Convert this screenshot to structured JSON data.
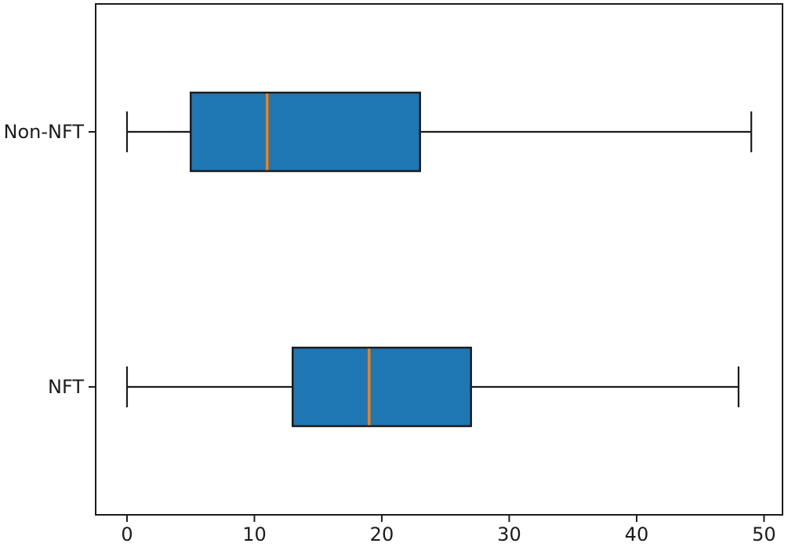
{
  "chart_data": {
    "type": "boxplot",
    "orientation": "horizontal",
    "title": "",
    "xlabel": "",
    "ylabel": "",
    "categories": [
      "Non-NFT",
      "NFT"
    ],
    "series": [
      {
        "name": "Non-NFT",
        "whisker_low": 0,
        "q1": 5,
        "median": 11,
        "q3": 23,
        "whisker_high": 49
      },
      {
        "name": "NFT",
        "whisker_low": 0,
        "q1": 13,
        "median": 19,
        "q3": 27,
        "whisker_high": 48
      }
    ],
    "x_ticks": [
      "0",
      "10",
      "20",
      "30",
      "40",
      "50"
    ],
    "x_tick_values": [
      0,
      10,
      20,
      30,
      40,
      50
    ],
    "xlim": [
      -2.46,
      51.45
    ],
    "grid": false,
    "frame": true,
    "colors": {
      "box_fill": "#1f77b4",
      "box_edge": "#1c1c1c",
      "median": "#ff7f0e",
      "whisker": "#1c1c1c",
      "axis": "#1c1c1c",
      "text": "#1c1c1c",
      "background": "#ffffff"
    }
  }
}
